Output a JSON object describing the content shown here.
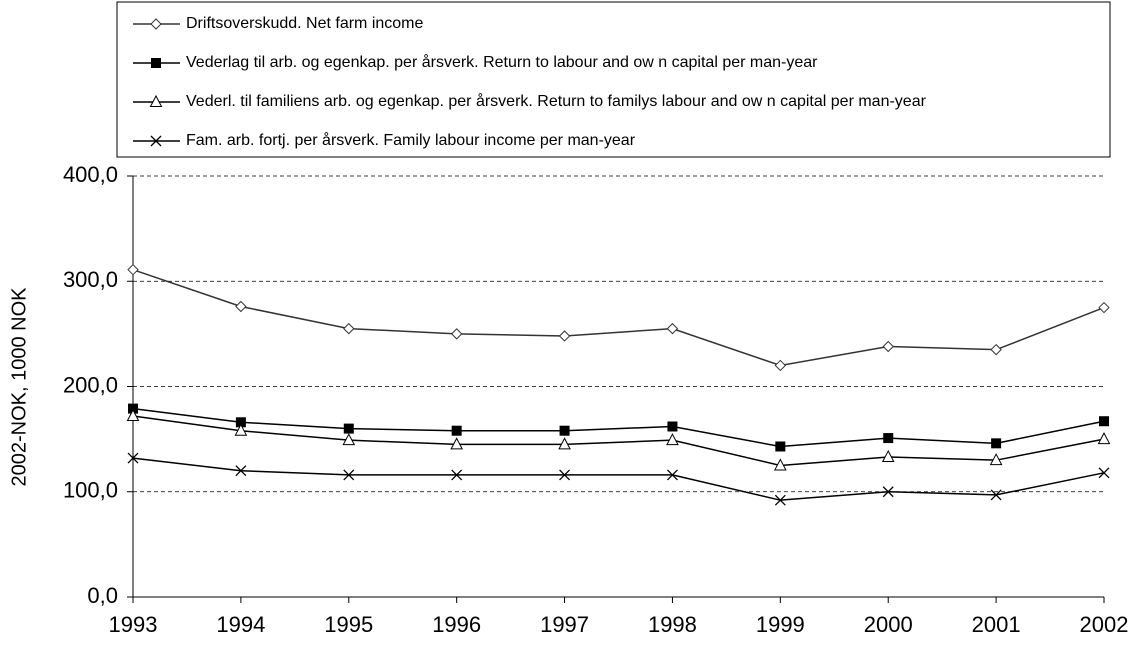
{
  "chart_data": {
    "type": "line",
    "y_label": "2002-NOK, 1000 NOK",
    "categories": [
      "1993",
      "1994",
      "1995",
      "1996",
      "1997",
      "1998",
      "1999",
      "2000",
      "2001",
      "2002"
    ],
    "series": [
      {
        "name": "Driftsoverskudd. Net farm income",
        "color": "#333333",
        "marker": "diamond",
        "values": [
          311,
          276,
          255,
          250,
          248,
          255,
          220,
          238,
          235,
          275
        ]
      },
      {
        "name": "Vederlag til arb. og egenkap. per årsverk. Return to labour and ow n capital per man-year",
        "color": "#000000",
        "marker": "square",
        "values": [
          179,
          166,
          160,
          158,
          158,
          162,
          143,
          151,
          146,
          167
        ]
      },
      {
        "name": "Vederl. til familiens arb. og egenkap. per årsverk. Return to familys labour and ow n capital per man-year",
        "color": "#000000",
        "marker": "triangle",
        "values": [
          172,
          158,
          149,
          145,
          145,
          149,
          125,
          133,
          130,
          150
        ]
      },
      {
        "name": "Fam. arb. fortj. per årsverk.  Family labour income per man-year",
        "color": "#000000",
        "marker": "x",
        "values": [
          132,
          120,
          116,
          116,
          116,
          116,
          92,
          100,
          97,
          118
        ]
      }
    ],
    "ylim": [
      0,
      400
    ],
    "yticks": [
      {
        "value": 0,
        "label": "0,0"
      },
      {
        "value": 100,
        "label": "100,0"
      },
      {
        "value": 200,
        "label": "200,0"
      },
      {
        "value": 300,
        "label": "300,0"
      },
      {
        "value": 400,
        "label": "400,0"
      }
    ],
    "grid": true,
    "legend": "top"
  }
}
